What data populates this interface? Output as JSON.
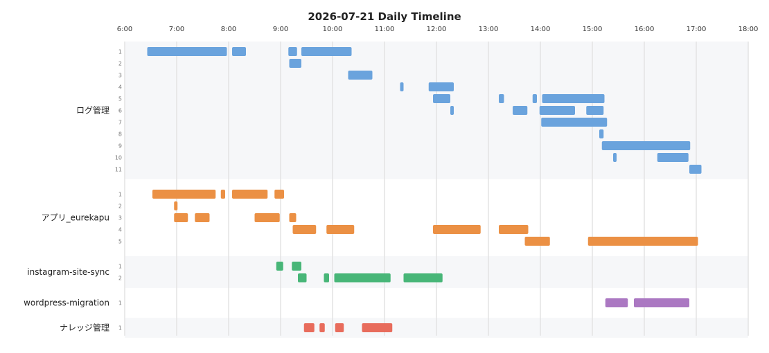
{
  "chart_data": {
    "type": "timeline",
    "title": "2026-07-21 Daily Timeline",
    "x_ticks": [
      "6:00",
      "7:00",
      "8:00",
      "9:00",
      "10:00",
      "11:00",
      "12:00",
      "13:00",
      "14:00",
      "15:00",
      "16:00",
      "17:00",
      "18:00"
    ],
    "xlim": [
      "6:00",
      "18:00"
    ],
    "grid": true,
    "groups": [
      {
        "name": "ログ管理",
        "color": "#6aa3dd",
        "rows": [
          {
            "label": "1",
            "bars": [
              [
                "6:26",
                "7:58"
              ],
              [
                "8:04",
                "8:20"
              ],
              [
                "9:09",
                "9:19"
              ],
              [
                "9:24",
                "10:22"
              ]
            ]
          },
          {
            "label": "2",
            "bars": [
              [
                "9:10",
                "9:24"
              ]
            ]
          },
          {
            "label": "3",
            "bars": [
              [
                "10:18",
                "10:46"
              ]
            ]
          },
          {
            "label": "4",
            "bars": [
              [
                "11:18",
                "11:22"
              ],
              [
                "11:51",
                "12:20"
              ]
            ]
          },
          {
            "label": "5",
            "bars": [
              [
                "11:56",
                "12:16"
              ],
              [
                "13:12",
                "13:18"
              ],
              [
                "13:51",
                "13:56"
              ],
              [
                "14:02",
                "15:14"
              ]
            ]
          },
          {
            "label": "6",
            "bars": [
              [
                "12:16",
                "12:20"
              ],
              [
                "13:28",
                "13:45"
              ],
              [
                "13:59",
                "14:40"
              ],
              [
                "14:53",
                "15:13"
              ]
            ]
          },
          {
            "label": "7",
            "bars": [
              [
                "14:01",
                "15:17"
              ]
            ]
          },
          {
            "label": "8",
            "bars": [
              [
                "15:08",
                "15:13"
              ]
            ]
          },
          {
            "label": "9",
            "bars": [
              [
                "15:11",
                "16:53"
              ]
            ]
          },
          {
            "label": "10",
            "bars": [
              [
                "15:24",
                "15:28"
              ],
              [
                "16:15",
                "16:51"
              ]
            ]
          },
          {
            "label": "11",
            "bars": [
              [
                "16:52",
                "17:06"
              ]
            ]
          }
        ]
      },
      {
        "name": "アプリ_eurekapu",
        "color": "#eb9044",
        "rows": [
          {
            "label": "1",
            "bars": [
              [
                "6:32",
                "7:45"
              ],
              [
                "7:51",
                "7:56"
              ],
              [
                "8:04",
                "8:45"
              ],
              [
                "8:53",
                "9:04"
              ]
            ]
          },
          {
            "label": "2",
            "bars": [
              [
                "6:57",
                "7:01"
              ]
            ]
          },
          {
            "label": "3",
            "bars": [
              [
                "6:57",
                "7:13"
              ],
              [
                "7:21",
                "7:38"
              ],
              [
                "8:30",
                "8:59"
              ],
              [
                "9:10",
                "9:18"
              ]
            ]
          },
          {
            "label": "4",
            "bars": [
              [
                "9:14",
                "9:41"
              ],
              [
                "9:53",
                "10:25"
              ],
              [
                "11:56",
                "12:51"
              ],
              [
                "13:12",
                "13:46"
              ]
            ]
          },
          {
            "label": "5",
            "bars": [
              [
                "13:42",
                "14:11"
              ],
              [
                "14:55",
                "17:02"
              ]
            ]
          }
        ]
      },
      {
        "name": "instagram-site-sync",
        "color": "#48b678",
        "rows": [
          {
            "label": "1",
            "bars": [
              [
                "8:55",
                "9:03"
              ],
              [
                "9:13",
                "9:24"
              ]
            ]
          },
          {
            "label": "2",
            "bars": [
              [
                "9:20",
                "9:30"
              ],
              [
                "9:50",
                "9:56"
              ],
              [
                "10:02",
                "11:07"
              ],
              [
                "11:22",
                "12:07"
              ]
            ]
          }
        ]
      },
      {
        "name": "wordpress-migration",
        "color": "#ab78c2",
        "rows": [
          {
            "label": "1",
            "bars": [
              [
                "15:15",
                "15:41"
              ],
              [
                "15:48",
                "16:52"
              ]
            ]
          }
        ]
      },
      {
        "name": "ナレッジ管理",
        "color": "#e86c5c",
        "rows": [
          {
            "label": "1",
            "bars": [
              [
                "9:27",
                "9:39"
              ],
              [
                "9:45",
                "9:51"
              ],
              [
                "10:03",
                "10:13"
              ],
              [
                "10:34",
                "11:09"
              ]
            ]
          }
        ]
      }
    ]
  }
}
